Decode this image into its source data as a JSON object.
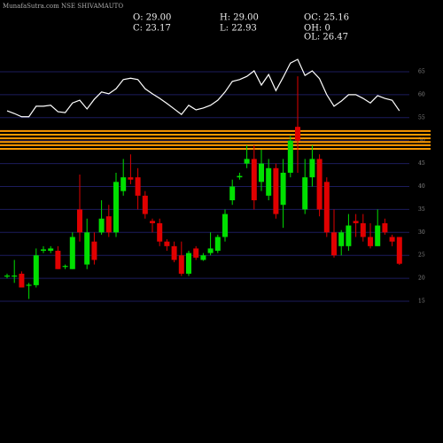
{
  "chart_data": {
    "type": "candlestick",
    "title": "MunafaSutra.com NSE SHIVAMAUTO",
    "info": [
      "O: 29.00",
      "H: 29.00",
      "OC: 25.16",
      "C: 23.17",
      "L: 22.93",
      "OH: 0",
      "OL: 26.47"
    ],
    "up_color": "#00e000",
    "down_color": "#e00000",
    "grid": true,
    "grid_color": "#1c1c5c",
    "ylim": [
      10,
      70
    ],
    "yticks": [
      15,
      20,
      25,
      30,
      35,
      40,
      45,
      50,
      55,
      60,
      65
    ],
    "open": [
      20.5,
      20.5,
      21,
      18.5,
      18.5,
      26,
      26,
      26,
      22.5,
      22,
      35,
      23,
      28,
      30,
      33.5,
      30,
      39,
      42,
      42,
      38,
      32.5,
      32,
      28,
      27,
      25,
      21,
      26.5,
      24,
      25.5,
      26,
      29,
      37,
      42,
      45,
      46,
      41,
      38,
      44,
      36,
      43,
      53,
      35,
      42,
      46,
      41,
      30,
      27,
      27,
      32.5,
      32,
      29,
      27,
      32,
      29,
      29
    ],
    "high": [
      21,
      24,
      21.5,
      19,
      26.5,
      27,
      27,
      27,
      23,
      30,
      42.6,
      33,
      30,
      37,
      36,
      43,
      46,
      47,
      44,
      39,
      33,
      33,
      28.5,
      28,
      28,
      26,
      27,
      25.5,
      30,
      29.5,
      35,
      41.5,
      43,
      49,
      49,
      48,
      46,
      45,
      46,
      51,
      64,
      46,
      49,
      47,
      42,
      35,
      30.5,
      34,
      34,
      34,
      32,
      35,
      33,
      29.5,
      29
    ],
    "low": [
      20,
      19,
      18,
      15.5,
      18,
      25.5,
      25.5,
      22,
      22,
      22,
      28,
      22,
      23,
      29.5,
      29,
      29,
      38,
      40.5,
      35,
      33,
      30,
      27,
      26,
      23.5,
      20.5,
      20.5,
      24,
      23.8,
      25,
      25.5,
      28,
      36,
      41.5,
      44,
      35,
      39,
      37,
      33,
      31,
      42,
      43,
      34,
      40,
      33.5,
      29,
      24.5,
      25,
      26,
      29,
      28,
      26.5,
      27,
      29.5,
      27,
      22.93
    ],
    "close": [
      20.6,
      20.6,
      18,
      18.6,
      25,
      26.3,
      26.5,
      22,
      22.7,
      29,
      30,
      30,
      24,
      33,
      30,
      41,
      42,
      41.5,
      38,
      34,
      32,
      28,
      27,
      24,
      21,
      25.5,
      24.5,
      25,
      26.5,
      29,
      34,
      40,
      42.3,
      46,
      37,
      45,
      44,
      34,
      43,
      50,
      50,
      42,
      46,
      35,
      30,
      25,
      30,
      31.5,
      32,
      29,
      27,
      31.5,
      30,
      28,
      23.17
    ],
    "line": {
      "color": "#ffffff",
      "values": [
        56.5,
        55.9,
        55.2,
        55.2,
        57.5,
        57.5,
        57.7,
        56.3,
        56.1,
        58.2,
        58.8,
        56.9,
        59.0,
        60.6,
        60.2,
        61.3,
        63.3,
        63.6,
        63.3,
        61.3,
        60.2,
        59.2,
        58.1,
        56.9,
        55.7,
        57.7,
        56.7,
        57.1,
        57.7,
        58.8,
        60.6,
        62.9,
        63.3,
        64.0,
        65.2,
        62.1,
        64.4,
        60.9,
        63.8,
        66.9,
        67.7,
        64.2,
        65.2,
        63.5,
        60.0,
        57.5,
        58.6,
        60.0,
        60.0,
        59.2,
        58.2,
        59.8,
        59.2,
        58.8,
        56.5
      ]
    },
    "levels": {
      "color": "#ff9900",
      "values": [
        52.1,
        51.3,
        50.5,
        49.7,
        49.0,
        48.2
      ]
    }
  }
}
